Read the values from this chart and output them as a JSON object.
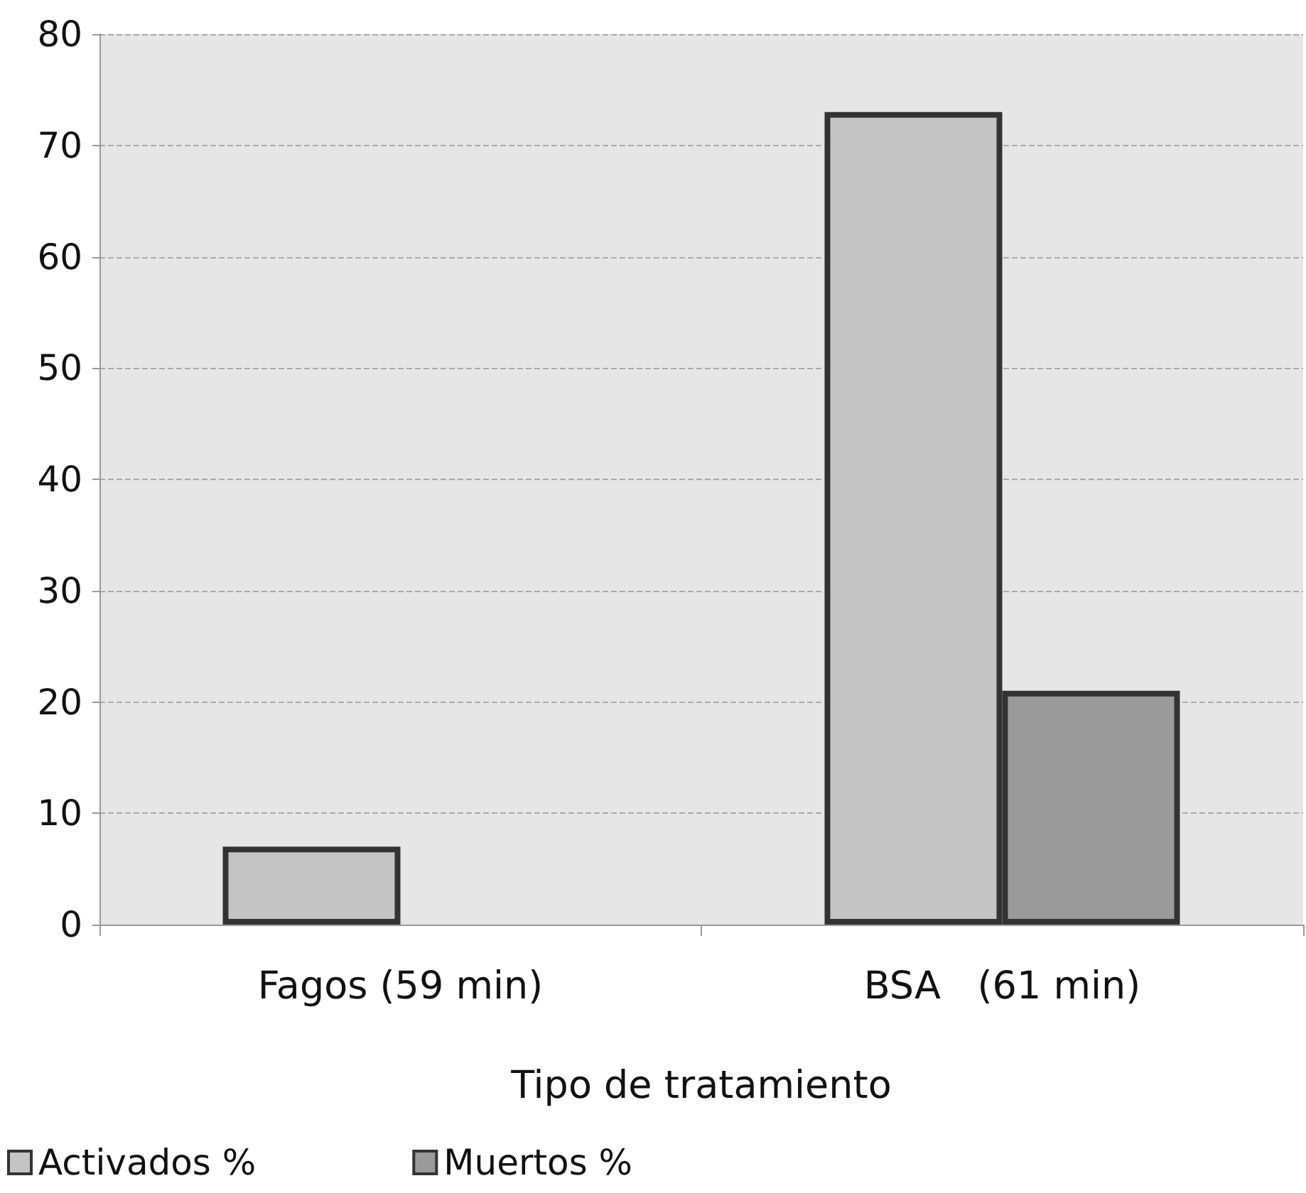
{
  "chart_data": {
    "type": "bar",
    "xlabel": "Tipo de tratamiento",
    "categories": [
      "Fagos (59 min)",
      "BSA   (61 min)"
    ],
    "series": [
      {
        "name": "Activados %",
        "color": "#c4c4c4",
        "values": [
          7,
          73
        ]
      },
      {
        "name": "Muertos %",
        "color": "#9a9a9a",
        "values": [
          null,
          21
        ]
      }
    ],
    "ylim": [
      0,
      80
    ],
    "yticks": [
      0,
      10,
      20,
      30,
      40,
      50,
      60,
      70,
      80
    ],
    "grid": "y",
    "legend": "bottom left"
  }
}
